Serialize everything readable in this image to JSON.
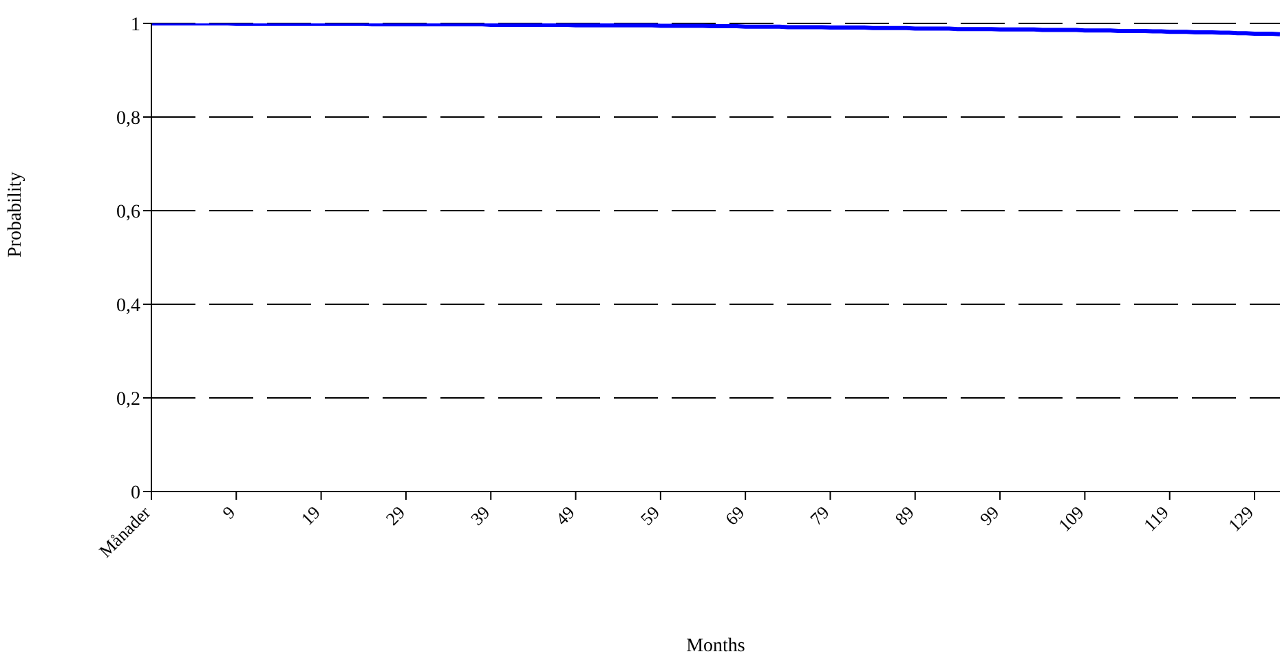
{
  "chart_data": {
    "type": "line",
    "xlabel": "Months",
    "ylabel": "Probability",
    "categories": [
      "Månader",
      null,
      null,
      null,
      null,
      null,
      null,
      null,
      null,
      null,
      "9",
      null,
      null,
      null,
      null,
      null,
      null,
      null,
      null,
      null,
      "19",
      null,
      null,
      null,
      null,
      null,
      null,
      null,
      null,
      null,
      "29",
      null,
      null,
      null,
      null,
      null,
      null,
      null,
      null,
      null,
      "39",
      null,
      null,
      null,
      null,
      null,
      null,
      null,
      null,
      null,
      "49",
      null,
      null,
      null,
      null,
      null,
      null,
      null,
      null,
      null,
      "59",
      null,
      null,
      null,
      null,
      null,
      null,
      null,
      null,
      null,
      "69",
      null,
      null,
      null,
      null,
      null,
      null,
      null,
      null,
      null,
      "79",
      null,
      null,
      null,
      null,
      null,
      null,
      null,
      null,
      null,
      "89",
      null,
      null,
      null,
      null,
      null,
      null,
      null,
      null,
      null,
      "99",
      null,
      null,
      null,
      null,
      null,
      null,
      null,
      null,
      null,
      "109",
      null,
      null,
      null,
      null,
      null,
      null,
      null,
      null,
      null,
      "119",
      null,
      null,
      null,
      null,
      null,
      null,
      null,
      null,
      null,
      "129",
      null,
      null,
      null
    ],
    "series": [
      {
        "color": "#0000ff",
        "values": [
          1,
          1,
          1,
          1,
          1,
          1,
          1,
          1,
          1,
          1,
          0.999,
          0.999,
          0.999,
          0.999,
          0.999,
          0.999,
          0.999,
          0.999,
          0.999,
          0.999,
          0.999,
          0.999,
          0.999,
          0.999,
          0.999,
          0.999,
          0.998,
          0.998,
          0.998,
          0.998,
          0.998,
          0.998,
          0.998,
          0.998,
          0.998,
          0.998,
          0.998,
          0.998,
          0.998,
          0.998,
          0.997,
          0.997,
          0.997,
          0.997,
          0.997,
          0.997,
          0.997,
          0.997,
          0.997,
          0.997,
          0.996,
          0.996,
          0.996,
          0.996,
          0.996,
          0.996,
          0.996,
          0.996,
          0.996,
          0.996,
          0.995,
          0.995,
          0.995,
          0.995,
          0.995,
          0.995,
          0.994,
          0.994,
          0.994,
          0.994,
          0.993,
          0.993,
          0.993,
          0.993,
          0.993,
          0.992,
          0.992,
          0.992,
          0.992,
          0.992,
          0.991,
          0.991,
          0.991,
          0.991,
          0.991,
          0.99,
          0.99,
          0.99,
          0.99,
          0.99,
          0.989,
          0.989,
          0.989,
          0.989,
          0.989,
          0.988,
          0.988,
          0.988,
          0.988,
          0.988,
          0.987,
          0.987,
          0.987,
          0.987,
          0.987,
          0.986,
          0.986,
          0.986,
          0.986,
          0.986,
          0.985,
          0.985,
          0.985,
          0.985,
          0.984,
          0.984,
          0.984,
          0.984,
          0.983,
          0.983,
          0.982,
          0.982,
          0.982,
          0.981,
          0.981,
          0.981,
          0.98,
          0.98,
          0.979,
          0.979,
          0.978,
          0.978,
          0.978,
          0.977
        ]
      }
    ],
    "ylim": [
      0,
      1
    ],
    "yticks": [
      0,
      {
        "value": 0.2,
        "label": "0,2"
      },
      {
        "value": 0.4,
        "label": "0,4"
      },
      {
        "value": 0.6,
        "label": "0,6"
      },
      {
        "value": 0.8,
        "label": "0,8"
      },
      1
    ],
    "grid": "y",
    "line_style": "solid",
    "marker": "none",
    "legend": false
  }
}
